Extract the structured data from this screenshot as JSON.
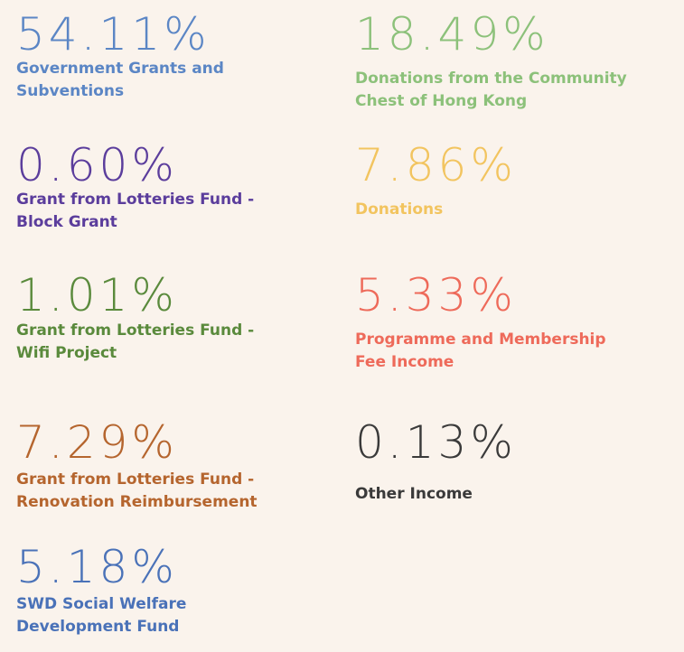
{
  "items": [
    {
      "percent": "54.11%",
      "label": [
        "Government Grants and",
        "Subventions"
      ],
      "color": "#5b86c5"
    },
    {
      "percent": "0.60%",
      "label": [
        "Grant from Lotteries Fund -",
        "Block Grant"
      ],
      "color": "#5b3d9c"
    },
    {
      "percent": "1.01%",
      "label": [
        "Grant from Lotteries Fund -",
        "Wifi Project"
      ],
      "color": "#5a8a3c"
    },
    {
      "percent": "7.29%",
      "label": [
        "Grant from Lotteries Fund -",
        "Renovation Reimbursement"
      ],
      "color": "#b5652e"
    },
    {
      "percent": "5.18%",
      "label": [
        "SWD Social Welfare",
        "Development Fund"
      ],
      "color": "#4a72b8"
    },
    {
      "percent": "18.49%",
      "label": [
        "Donations from the Community",
        "Chest of Hong Kong"
      ],
      "color": "#8cc17a"
    },
    {
      "percent": "7.86%",
      "label": [
        "Donations"
      ],
      "color": "#f2c45f"
    },
    {
      "percent": "5.33%",
      "label": [
        "Programme and Membership",
        "Fee Income"
      ],
      "color": "#ee6a5a"
    },
    {
      "percent": "0.13%",
      "label": [
        "Other Income"
      ],
      "color": "#3a3a3a"
    }
  ]
}
